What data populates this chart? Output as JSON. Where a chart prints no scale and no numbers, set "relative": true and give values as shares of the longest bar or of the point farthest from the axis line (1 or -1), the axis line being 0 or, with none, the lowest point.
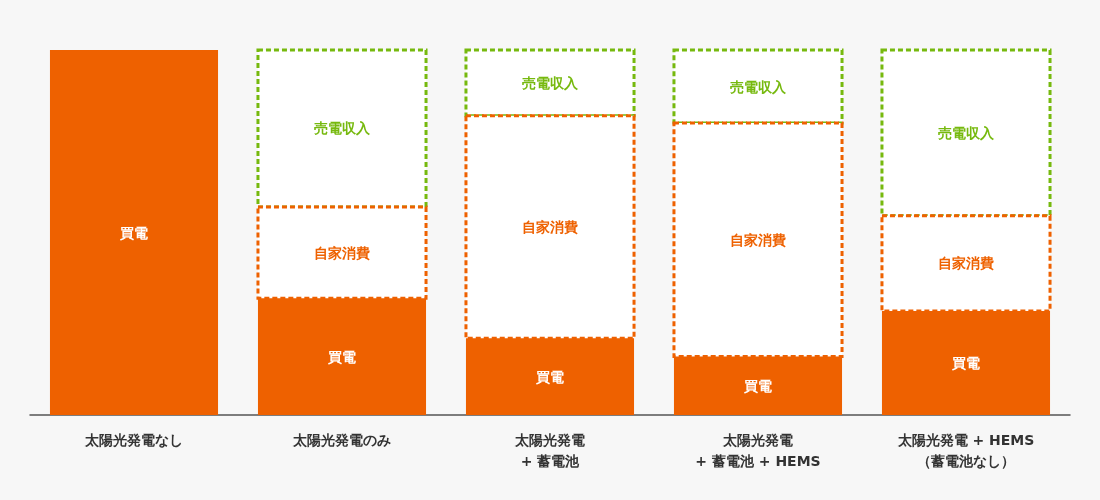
{
  "chart_data": {
    "type": "bar",
    "stacked": true,
    "relative": true,
    "grid": false,
    "legend": false,
    "categories": [
      "太陽光発電なし",
      "太陽光発電のみ",
      "太陽光発電\n+ 蓄電池",
      "太陽光発電\n+ 蓄電池 + HEMS",
      "太陽光発電 + HEMS\n（蓄電池なし）"
    ],
    "series": [
      {
        "name": "買電",
        "color": "#ee6100",
        "values": [
          1,
          0.32,
          0.21,
          0.16,
          0.285
        ]
      },
      {
        "name": "自家消費",
        "color": "#ee6100",
        "line_style": "dashed",
        "values": [
          null,
          0.25,
          0.61,
          0.64,
          0.261
        ]
      },
      {
        "name": "売電収入",
        "color": "#76b90e",
        "line_style": "dashed",
        "values": [
          null,
          0.43,
          0.18,
          0.2,
          0.454
        ]
      }
    ]
  }
}
